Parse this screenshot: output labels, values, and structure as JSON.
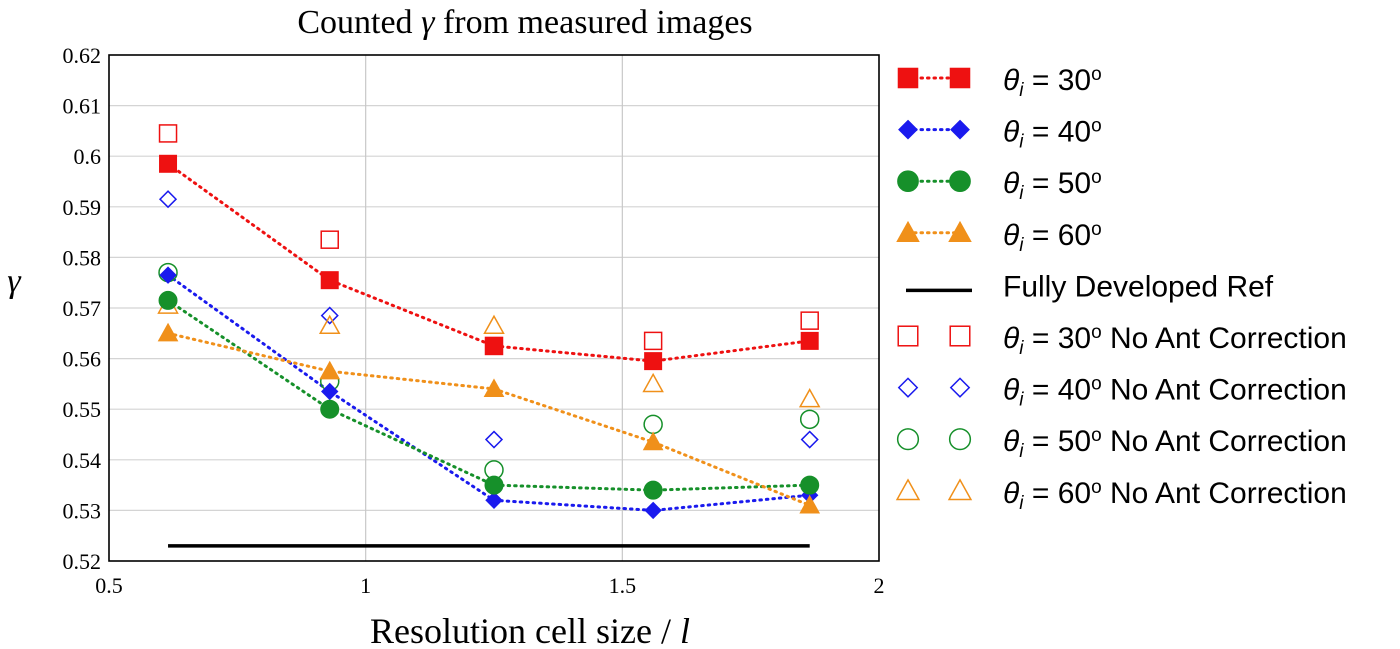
{
  "chart_data": {
    "type": "line",
    "title_prefix": "Counted ",
    "title_symbol": "γ",
    "title_suffix": " from measured images",
    "xlabel_prefix": "Resolution cell size / ",
    "xlabel_symbol": "l",
    "ylabel": "γ",
    "xlim": [
      0.5,
      2
    ],
    "ylim": [
      0.52,
      0.62
    ],
    "xticks": [
      0.5,
      1,
      1.5,
      2
    ],
    "xtick_labels": [
      "0.5",
      "1",
      "1.5",
      "2"
    ],
    "yticks": [
      0.52,
      0.53,
      0.54,
      0.55,
      0.56,
      0.57,
      0.58,
      0.59,
      0.6,
      0.61,
      0.62
    ],
    "ytick_labels": [
      "0.52",
      "0.53",
      "0.54",
      "0.55",
      "0.56",
      "0.57",
      "0.58",
      "0.59",
      "0.6",
      "0.61",
      "0.62"
    ],
    "grid": "vertical and horizontal",
    "x": [
      0.615,
      0.93,
      1.25,
      1.56,
      1.865
    ],
    "series": [
      {
        "name": "θi = 30o",
        "legend_sym": "θ",
        "legend_sub": "i",
        "legend_eq": " = 30",
        "legend_sup": "o",
        "legend_tail": "",
        "marker": "square",
        "filled": true,
        "line": "dotted",
        "color": "#ee1111",
        "values": [
          0.5985,
          0.5755,
          0.5625,
          0.5595,
          0.5635
        ]
      },
      {
        "name": "θi = 40o",
        "legend_sym": "θ",
        "legend_sub": "i",
        "legend_eq": " = 40",
        "legend_sup": "o",
        "legend_tail": "",
        "marker": "diamond",
        "filled": true,
        "line": "dotted",
        "color": "#1a1aee",
        "values": [
          0.5765,
          0.5535,
          0.532,
          0.53,
          0.533
        ]
      },
      {
        "name": "θi = 50o",
        "legend_sym": "θ",
        "legend_sub": "i",
        "legend_eq": " = 50",
        "legend_sup": "o",
        "legend_tail": "",
        "marker": "circle",
        "filled": true,
        "line": "dotted",
        "color": "#16902a",
        "values": [
          0.5715,
          0.55,
          0.535,
          0.534,
          0.535
        ]
      },
      {
        "name": "θi = 60o",
        "legend_sym": "θ",
        "legend_sub": "i",
        "legend_eq": " = 60",
        "legend_sup": "o",
        "legend_tail": "",
        "marker": "triangle",
        "filled": true,
        "line": "dotted",
        "color": "#f0901a",
        "values": [
          0.565,
          0.5575,
          0.554,
          0.5435,
          0.531
        ]
      },
      {
        "name": "Fully Developed Ref",
        "legend_text": "Fully Developed Ref",
        "marker": "none",
        "filled": false,
        "line": "solid",
        "color": "#000000",
        "x": [
          0.615,
          1.865
        ],
        "values": [
          0.523,
          0.523
        ]
      },
      {
        "name": "θi = 30o No Ant Correction",
        "legend_sym": "θ",
        "legend_sub": "i",
        "legend_eq": " = 30",
        "legend_sup": "o",
        "legend_tail": " No Ant Correction",
        "marker": "square",
        "filled": false,
        "line": "none",
        "color": "#ee1111",
        "values": [
          0.6045,
          0.5835,
          0.5625,
          0.5635,
          0.5675
        ]
      },
      {
        "name": "θi = 40o No Ant Correction",
        "legend_sym": "θ",
        "legend_sub": "i",
        "legend_eq": " = 40",
        "legend_sup": "o",
        "legend_tail": " No Ant Correction",
        "marker": "diamond",
        "filled": false,
        "line": "none",
        "color": "#1a1aee",
        "values": [
          0.5915,
          0.5685,
          0.544,
          0.534,
          0.544
        ]
      },
      {
        "name": "θi = 50o No Ant Correction",
        "legend_sym": "θ",
        "legend_sub": "i",
        "legend_eq": " = 50",
        "legend_sup": "o",
        "legend_tail": " No Ant Correction",
        "marker": "circle",
        "filled": false,
        "line": "none",
        "color": "#16902a",
        "values": [
          0.577,
          0.5555,
          0.538,
          0.547,
          0.548
        ]
      },
      {
        "name": "θi = 60o No Ant Correction",
        "legend_sym": "θ",
        "legend_sub": "i",
        "legend_eq": " = 60",
        "legend_sup": "o",
        "legend_tail": " No Ant Correction",
        "marker": "triangle",
        "filled": false,
        "line": "none",
        "color": "#f0901a",
        "values": [
          0.5705,
          0.5665,
          0.5665,
          0.555,
          0.552
        ]
      }
    ]
  }
}
